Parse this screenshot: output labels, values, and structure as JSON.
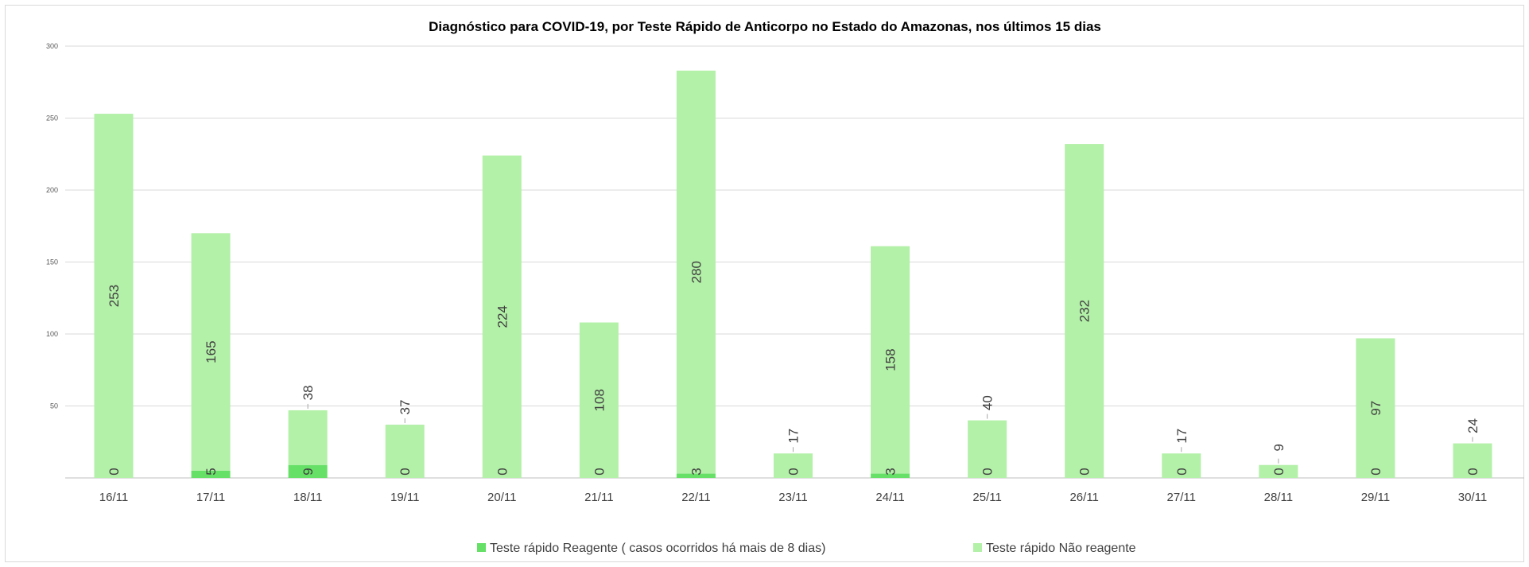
{
  "chart_data": {
    "type": "bar",
    "stacked": true,
    "title": "Diagnóstico para COVID-19, por  Teste Rápido de Anticorpo no Estado do Amazonas, nos últimos 15 dias",
    "xlabel": "",
    "ylabel": "",
    "ylim": [
      0,
      300
    ],
    "yticks": [
      0,
      50,
      100,
      150,
      200,
      250,
      300
    ],
    "grid": true,
    "legend_position": "bottom",
    "categories": [
      "16/11",
      "17/11",
      "18/11",
      "19/11",
      "20/11",
      "21/11",
      "22/11",
      "23/11",
      "24/11",
      "25/11",
      "26/11",
      "27/11",
      "28/11",
      "29/11",
      "30/11"
    ],
    "series": [
      {
        "name": "Teste rápido Reagente ( casos ocorridos há mais de 8 dias)",
        "color": "#66e066",
        "values": [
          0,
          5,
          9,
          0,
          0,
          0,
          3,
          0,
          3,
          0,
          0,
          0,
          0,
          0,
          0
        ]
      },
      {
        "name": "Teste rápido Não reagente",
        "color": "#b3f0a8",
        "values": [
          253,
          165,
          38,
          37,
          224,
          108,
          280,
          17,
          158,
          40,
          232,
          17,
          9,
          97,
          24
        ]
      }
    ]
  }
}
